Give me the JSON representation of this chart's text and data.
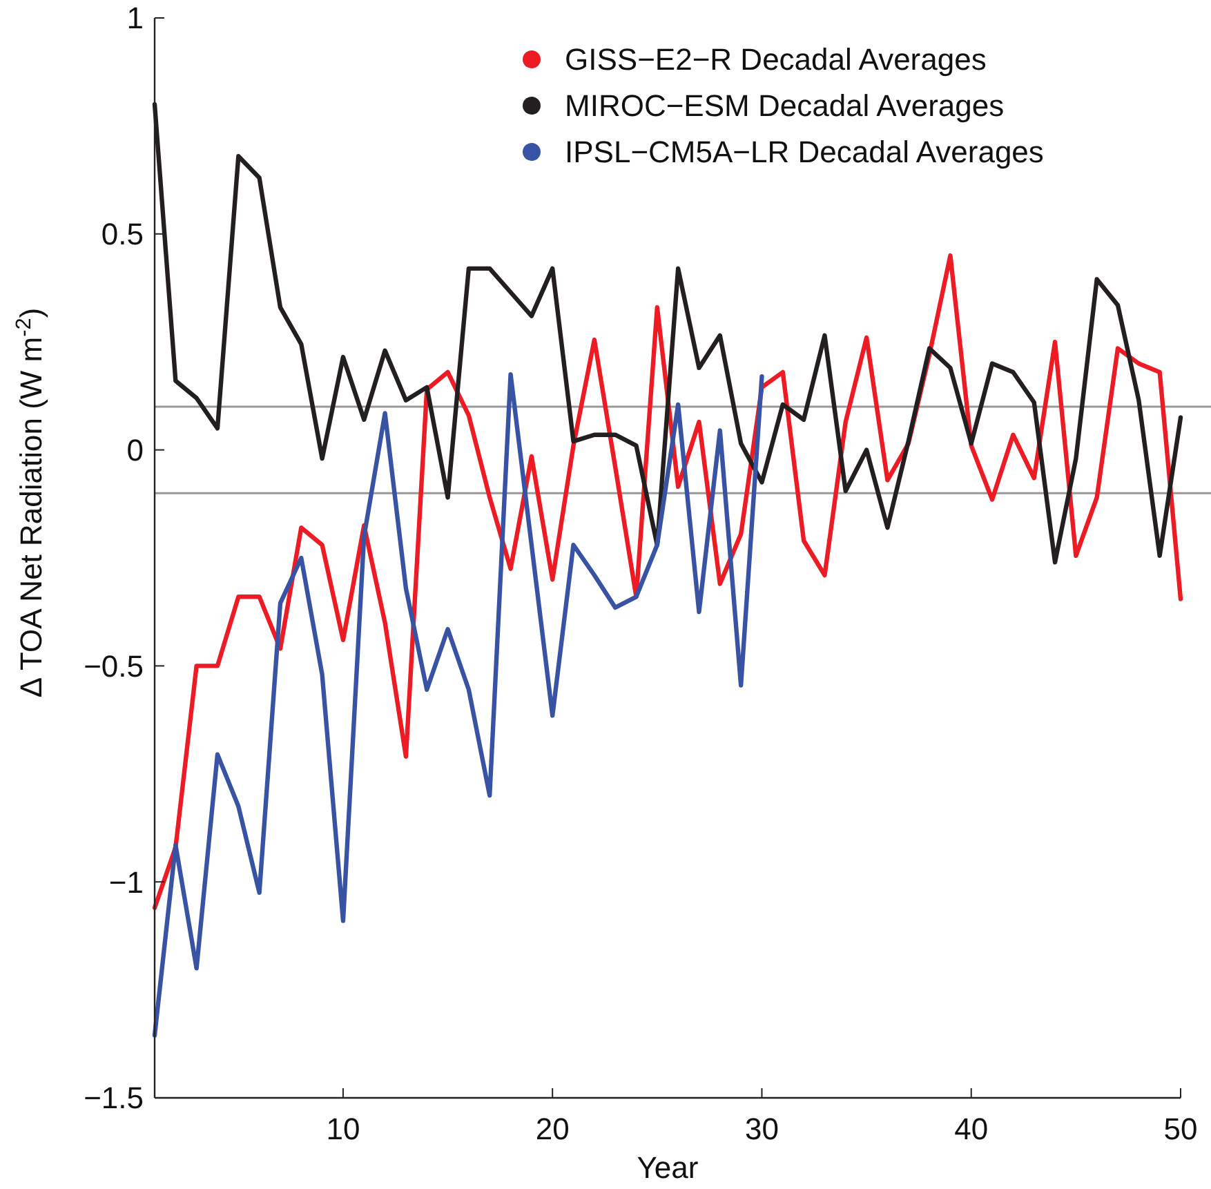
{
  "chart_data": {
    "type": "line",
    "xlabel": "Year",
    "ylabel": "Δ TOA Net Radiation (W m$^{-2}$)",
    "x": [
      1,
      2,
      3,
      4,
      5,
      6,
      7,
      8,
      9,
      10,
      11,
      12,
      13,
      14,
      15,
      16,
      17,
      18,
      19,
      20,
      21,
      22,
      23,
      24,
      25,
      26,
      27,
      28,
      29,
      30,
      31,
      32,
      33,
      34,
      35,
      36,
      37,
      38,
      39,
      40,
      41,
      42,
      43,
      44,
      45,
      46,
      47,
      48,
      49,
      50
    ],
    "xlim": [
      1,
      50
    ],
    "xticks": [
      10,
      20,
      30,
      40,
      50
    ],
    "ylim": [
      -1.5,
      1
    ],
    "yticks": [
      {
        "value": -1.5,
        "label": "−1.5"
      },
      {
        "value": -1,
        "label": "−1"
      },
      {
        "value": -0.5,
        "label": "−0.5"
      },
      0,
      0.5,
      1
    ],
    "series": [
      {
        "name": "GISS−E2−R Decadal Averages",
        "color": "#ed1c24",
        "values": [
          -1.06,
          -0.92,
          -0.5,
          -0.5,
          -0.34,
          -0.34,
          -0.46,
          -0.18,
          -0.22,
          -0.44,
          -0.175,
          -0.4,
          -0.71,
          0.14,
          0.18,
          0.08,
          -0.11,
          -0.275,
          -0.015,
          -0.3,
          0.01,
          0.255,
          -0.04,
          -0.34,
          0.33,
          -0.085,
          0.065,
          -0.31,
          -0.195,
          0.145,
          0.18,
          -0.21,
          -0.29,
          0.065,
          0.26,
          -0.07,
          0.015,
          0.22,
          0.45,
          0.01,
          -0.115,
          0.035,
          -0.065,
          0.25,
          -0.245,
          -0.11,
          0.235,
          0.2,
          0.18,
          -0.345
        ]
      },
      {
        "name": "MIROC−ESM Decadal Averages",
        "color": "#231f20",
        "values": [
          0.8,
          0.16,
          0.12,
          0.05,
          0.68,
          0.63,
          0.33,
          0.245,
          -0.02,
          0.215,
          0.07,
          0.23,
          0.115,
          0.145,
          -0.11,
          0.42,
          0.42,
          0.365,
          0.31,
          0.42,
          0.02,
          0.035,
          0.035,
          0.01,
          -0.22,
          0.42,
          0.19,
          0.265,
          0.015,
          -0.075,
          0.105,
          0.07,
          0.265,
          -0.095,
          0.0,
          -0.18,
          0.02,
          0.235,
          0.19,
          0.015,
          0.2,
          0.18,
          0.11,
          -0.26,
          -0.02,
          0.395,
          0.335,
          0.115,
          -0.245,
          0.075
        ]
      },
      {
        "name": "IPSL−CM5A−LR Decadal Averages",
        "color": "#3953a4",
        "values": [
          -1.355,
          -0.915,
          -1.2,
          -0.705,
          -0.825,
          -1.025,
          -0.355,
          -0.25,
          -0.52,
          -1.09,
          -0.2,
          0.085,
          -0.32,
          -0.555,
          -0.415,
          -0.555,
          -0.8,
          0.175,
          -0.22,
          -0.615,
          -0.22,
          -0.29,
          -0.365,
          -0.34,
          -0.22,
          0.105,
          -0.375,
          0.045,
          -0.545,
          0.17,
          null,
          null,
          null,
          null,
          null,
          null,
          null,
          null,
          null,
          null,
          null,
          null,
          null,
          null,
          null,
          null,
          null,
          null,
          null,
          null
        ]
      }
    ],
    "ref_lines": [
      {
        "axis": "y",
        "value": 0.1,
        "color": "#999999"
      },
      {
        "axis": "y",
        "value": -0.1,
        "color": "#999999"
      }
    ],
    "legend": "top right",
    "grid": false,
    "marker": "none",
    "line_style": "solid"
  }
}
